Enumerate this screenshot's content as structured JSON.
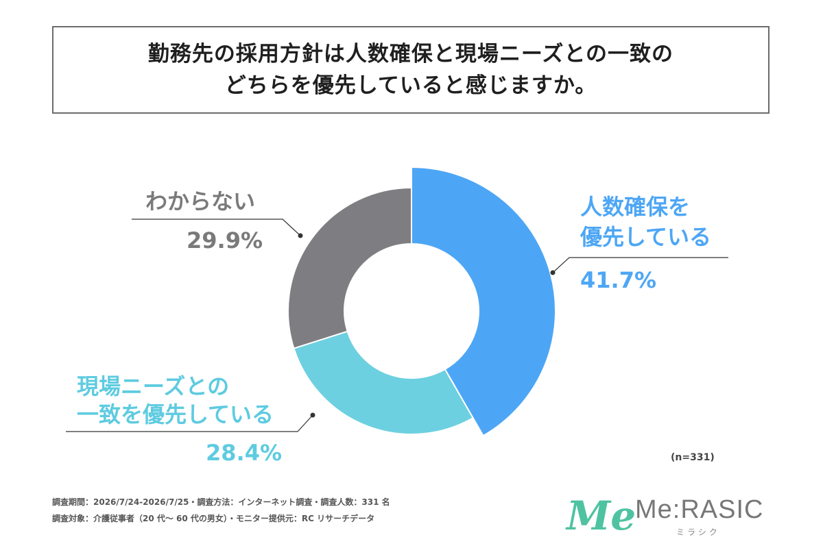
{
  "title": {
    "line1": "勤務先の採用方針は人数確保と現場ニーズとの一致の",
    "line2": "どちらを優先していると感じますか。"
  },
  "chart_data": {
    "type": "pie",
    "donut": true,
    "sample_note": "(n=331)",
    "slices": [
      {
        "label_lines": [
          "人数確保を",
          "優先している"
        ],
        "value_label": "41.7%",
        "value": 41.7,
        "color": "#4da6f5",
        "label_color": "#4da6f5",
        "explode": true
      },
      {
        "label_lines": [
          "現場ニーズとの",
          "一致を優先している"
        ],
        "value_label": "28.4%",
        "value": 28.4,
        "color": "#6dd0e0",
        "label_color": "#5ecbe0",
        "explode": false
      },
      {
        "label_lines": [
          "わからない"
        ],
        "value_label": "29.9%",
        "value": 29.9,
        "color": "#7e7d82",
        "label_color": "#7a7a7a",
        "explode": false
      }
    ]
  },
  "footer": {
    "line1": "調査期間：2026/7/24-2026/7/25・調査方法：インターネット調査・調査人数：331 名",
    "line2": "調査対象：介護従事者（20 代～ 60 代の男女）・モニター提供元：RC リサーチデータ"
  },
  "logo": {
    "mark": "Me",
    "name": "Me:RASIC",
    "kana": "ミラシク",
    "color": "#4fc3a1"
  }
}
